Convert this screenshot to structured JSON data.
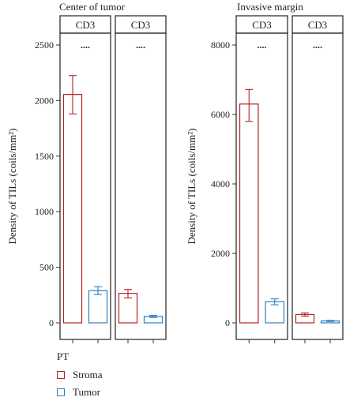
{
  "chart_data": [
    {
      "type": "bar",
      "title": "Center of tumor",
      "ylabel": "Density of TILs (coils/mm²)",
      "ylim": [
        0,
        2550
      ],
      "yticks": [
        0,
        500,
        1000,
        1500,
        2000,
        2500
      ],
      "facets": [
        {
          "label": "CD3",
          "significance": "....",
          "series": [
            {
              "name": "Stroma",
              "value": 2055,
              "err_low": 1880,
              "err_high": 2225
            },
            {
              "name": "Tumor",
              "value": 290,
              "err_low": 255,
              "err_high": 325
            }
          ]
        },
        {
          "label": "CD3",
          "significance": "....",
          "series": [
            {
              "name": "Stroma",
              "value": 265,
              "err_low": 225,
              "err_high": 300
            },
            {
              "name": "Tumor",
              "value": 58,
              "err_low": 48,
              "err_high": 68
            }
          ]
        }
      ]
    },
    {
      "type": "bar",
      "title": "Invasive margin",
      "ylabel": "Density of TILs (coils/mm²)",
      "ylim": [
        0,
        8100
      ],
      "yticks": [
        0,
        2000,
        4000,
        6000,
        8000
      ],
      "facets": [
        {
          "label": "CD3",
          "significance": "....",
          "series": [
            {
              "name": "Stroma",
              "value": 6300,
              "err_low": 5800,
              "err_high": 6720
            },
            {
              "name": "Tumor",
              "value": 610,
              "err_low": 520,
              "err_high": 690
            }
          ]
        },
        {
          "label": "CD3",
          "significance": "....",
          "series": [
            {
              "name": "Stroma",
              "value": 240,
              "err_low": 195,
              "err_high": 285
            },
            {
              "name": "Tumor",
              "value": 55,
              "err_low": 40,
              "err_high": 70
            }
          ]
        }
      ]
    }
  ],
  "legend": {
    "title": "PT",
    "items": [
      {
        "label": "Stroma",
        "color": "#b22222"
      },
      {
        "label": "Tumor",
        "color": "#2f7fbf"
      }
    ]
  }
}
